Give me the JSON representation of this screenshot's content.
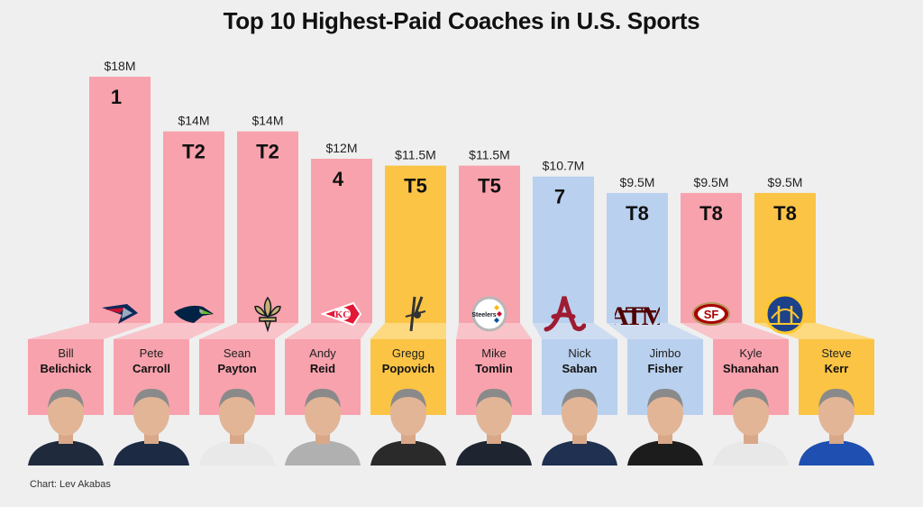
{
  "title": "Top 10 Highest-Paid Coaches in U.S. Sports",
  "credit": "Chart: Lev Akabas",
  "colors": {
    "nfl": "#f8a2ad",
    "nba": "#fbc444",
    "ncaa": "#b9d0ee",
    "nfl_light": "#f9c3ca",
    "nba_light": "#fdd980",
    "ncaa_light": "#cddcf1",
    "background": "#efefef"
  },
  "chart_data": {
    "type": "bar",
    "title": "Top 10 Highest-Paid Coaches in U.S. Sports",
    "unit": "$M",
    "categories": [
      "Bill Belichick",
      "Pete Carroll",
      "Sean Payton",
      "Andy Reid",
      "Gregg Popovich",
      "Mike Tomlin",
      "Nick Saban",
      "Jimbo Fisher",
      "Kyle Shanahan",
      "Steve Kerr"
    ],
    "values": [
      18,
      14,
      14,
      12,
      11.5,
      11.5,
      10.7,
      9.5,
      9.5,
      9.5
    ],
    "value_labels": [
      "$18M",
      "$14M",
      "$14M",
      "$12M",
      "$11.5M",
      "$11.5M",
      "$10.7M",
      "$9.5M",
      "$9.5M",
      "$9.5M"
    ],
    "ranks": [
      "1",
      "T2",
      "T2",
      "4",
      "T5",
      "T5",
      "7",
      "T8",
      "T8",
      "T8"
    ],
    "leagues": [
      "nfl",
      "nfl",
      "nfl",
      "nfl",
      "nba",
      "nfl",
      "ncaa",
      "ncaa",
      "nfl",
      "nba"
    ],
    "ylim": [
      0,
      18
    ]
  },
  "coaches": [
    {
      "first": "Bill",
      "last": "Belichick",
      "logo": "patriots-logo-icon"
    },
    {
      "first": "Pete",
      "last": "Carroll",
      "logo": "seahawks-logo-icon"
    },
    {
      "first": "Sean",
      "last": "Payton",
      "logo": "saints-fleur-de-lis-icon"
    },
    {
      "first": "Andy",
      "last": "Reid",
      "logo": "chiefs-arrowhead-icon"
    },
    {
      "first": "Gregg",
      "last": "Popovich",
      "logo": "spurs-logo-icon"
    },
    {
      "first": "Mike",
      "last": "Tomlin",
      "logo": "steelers-logo-icon"
    },
    {
      "first": "Nick",
      "last": "Saban",
      "logo": "alabama-script-a-icon"
    },
    {
      "first": "Jimbo",
      "last": "Fisher",
      "logo": "texas-am-logo-icon"
    },
    {
      "first": "Kyle",
      "last": "Shanahan",
      "logo": "49ers-logo-icon"
    },
    {
      "first": "Steve",
      "last": "Kerr",
      "logo": "warriors-logo-icon"
    }
  ]
}
